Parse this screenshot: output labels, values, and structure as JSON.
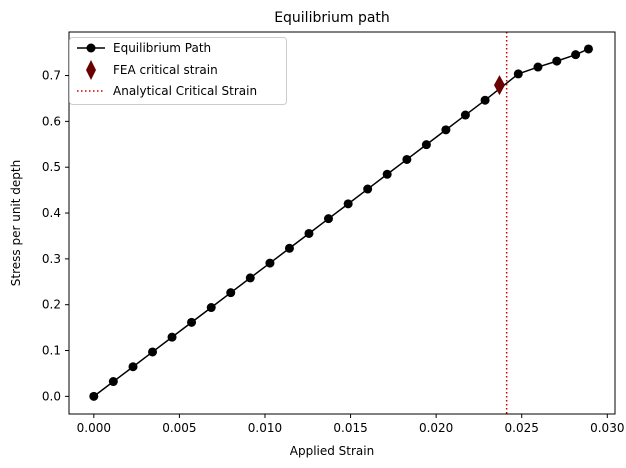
{
  "chart_data": {
    "type": "line",
    "title": "Equilibrium path",
    "xlabel": "Applied Strain",
    "ylabel": "Stress per unit depth",
    "xlim": [
      -0.00145,
      0.03045
    ],
    "ylim": [
      -0.0385,
      0.795
    ],
    "xticks": [
      0.0,
      0.005,
      0.01,
      0.015,
      0.02,
      0.025,
      0.03
    ],
    "xtick_labels": [
      "0.000",
      "0.005",
      "0.010",
      "0.015",
      "0.020",
      "0.025",
      "0.030"
    ],
    "yticks": [
      0.0,
      0.1,
      0.2,
      0.3,
      0.4,
      0.5,
      0.6,
      0.7
    ],
    "ytick_labels": [
      "0.0",
      "0.1",
      "0.2",
      "0.3",
      "0.4",
      "0.5",
      "0.6",
      "0.7"
    ],
    "grid": false,
    "legend_position": "top-left",
    "series": [
      {
        "name": "Equilibrium Path",
        "color": "#000000",
        "marker": "circle",
        "x": [
          0.0,
          0.00114,
          0.00229,
          0.00343,
          0.00457,
          0.00571,
          0.00686,
          0.008,
          0.00914,
          0.01029,
          0.01143,
          0.01257,
          0.01371,
          0.01486,
          0.016,
          0.01714,
          0.01829,
          0.01943,
          0.02057,
          0.02171,
          0.02286,
          0.0248,
          0.02595,
          0.02705,
          0.02815,
          0.0289
        ],
        "y": [
          0.0,
          0.0323,
          0.0646,
          0.0969,
          0.1292,
          0.1615,
          0.1938,
          0.2262,
          0.2585,
          0.2908,
          0.3231,
          0.3554,
          0.3877,
          0.42,
          0.4523,
          0.4846,
          0.5169,
          0.5492,
          0.5815,
          0.6138,
          0.6462,
          0.7035,
          0.7185,
          0.7315,
          0.7455,
          0.758
        ]
      }
    ],
    "fea_critical": {
      "name": "FEA critical strain",
      "color": "#6b0000",
      "marker": "diamond",
      "x": 0.0237,
      "y": 0.679
    },
    "analytical_critical": {
      "name": "Analytical Critical Strain",
      "color": "#cc0000",
      "style": "dotted",
      "x": 0.02412
    }
  }
}
